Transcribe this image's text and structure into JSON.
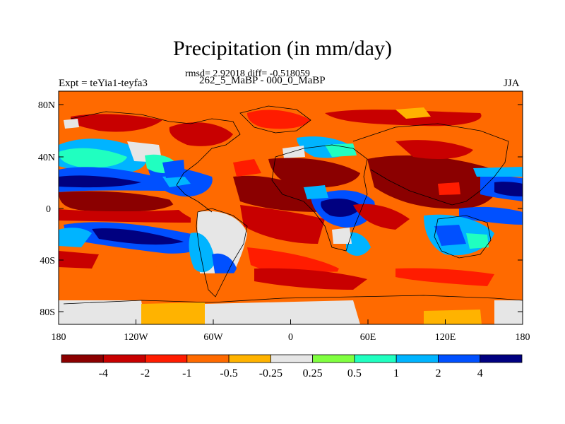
{
  "title": "Precipitation (in mm/day)",
  "stats_line": "rmsd= 2.92018 diff= -0.518059",
  "left_label": "Expt = teYia1-teyfa3",
  "center_label": "262_5_MaBP - 000_0_MaBP",
  "right_label": "JJA",
  "axes": {
    "y_ticks": [
      "80N",
      "40N",
      "0",
      "40S",
      "80S"
    ],
    "x_ticks": [
      "180",
      "120W",
      "60W",
      "0",
      "60E",
      "120E",
      "180"
    ]
  },
  "colorbar": {
    "colors": [
      "#8b0000",
      "#c80000",
      "#ff1c00",
      "#ff6a00",
      "#ffb300",
      "#e6e6e6",
      "#80ff40",
      "#20ffc0",
      "#00b4ff",
      "#0050ff",
      "#000080"
    ],
    "labels": [
      "-4",
      "-2",
      "-1",
      "-0.5",
      "-0.25",
      "0.25",
      "0.5",
      "1",
      "2",
      "4"
    ]
  }
}
